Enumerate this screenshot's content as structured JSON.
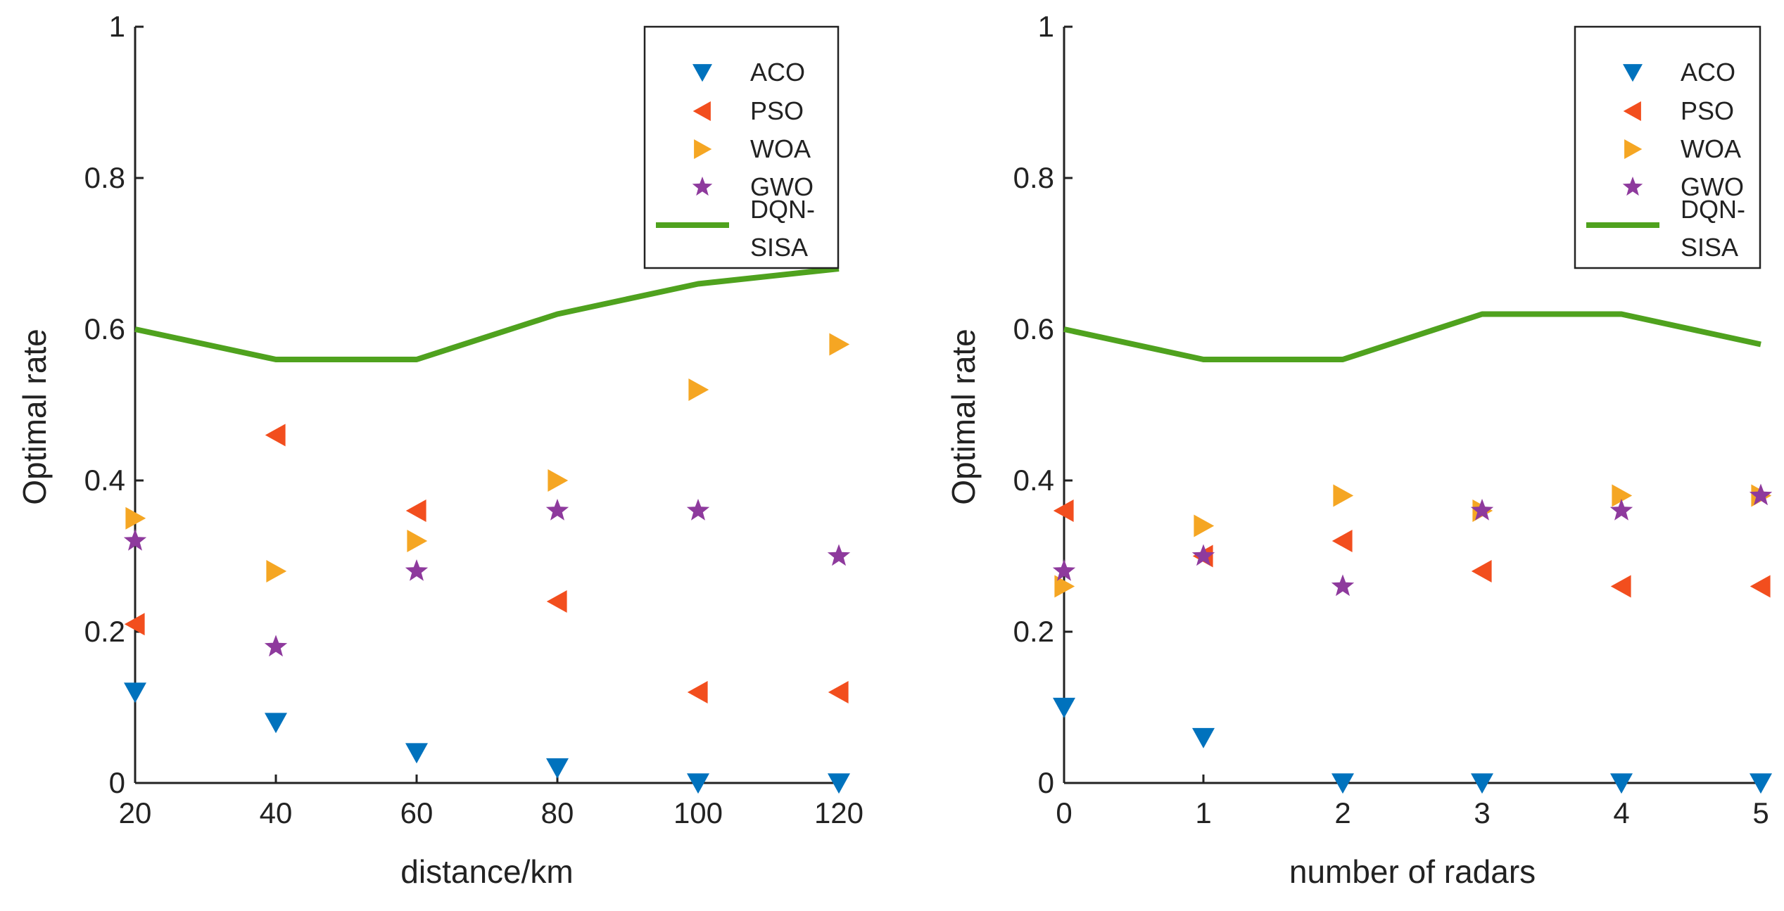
{
  "chart_data": [
    {
      "type": "scatter",
      "title": "",
      "xlabel": "distance/km",
      "ylabel": "Optimal rate",
      "xlim": [
        20,
        120
      ],
      "ylim": [
        0,
        1
      ],
      "x": [
        20,
        40,
        60,
        80,
        100,
        120
      ],
      "x_ticks": [
        "20",
        "40",
        "60",
        "80",
        "100",
        "120"
      ],
      "y_ticks": [
        "0",
        "0.2",
        "0.4",
        "0.6",
        "0.8",
        "1"
      ],
      "legend_position": "top-right",
      "series": [
        {
          "name": "ACO",
          "marker": "triangle-down",
          "color": "#0072BD",
          "values": [
            0.12,
            0.08,
            0.04,
            0.02,
            0.0,
            0.0
          ]
        },
        {
          "name": "PSO",
          "marker": "triangle-left",
          "color": "#F24E1E",
          "values": [
            0.21,
            0.46,
            0.36,
            0.24,
            0.12,
            0.12
          ]
        },
        {
          "name": "WOA",
          "marker": "triangle-right",
          "color": "#F5A623",
          "values": [
            0.35,
            0.28,
            0.32,
            0.4,
            0.52,
            0.58
          ]
        },
        {
          "name": "GWO",
          "marker": "star",
          "color": "#8E3A9D",
          "values": [
            0.32,
            0.18,
            0.28,
            0.36,
            0.36,
            0.3
          ]
        },
        {
          "name": "DQN-SISA",
          "marker": "line",
          "color": "#4FA21E",
          "values": [
            0.6,
            0.56,
            0.56,
            0.62,
            0.66,
            0.68
          ]
        }
      ]
    },
    {
      "type": "scatter",
      "title": "",
      "xlabel": "number of radars",
      "ylabel": "Optimal rate",
      "xlim": [
        0,
        5
      ],
      "ylim": [
        0,
        1
      ],
      "x": [
        0,
        1,
        2,
        3,
        4,
        5
      ],
      "x_ticks": [
        "0",
        "1",
        "2",
        "3",
        "4",
        "5"
      ],
      "y_ticks": [
        "0",
        "0.2",
        "0.4",
        "0.6",
        "0.8",
        "1"
      ],
      "legend_position": "top-right",
      "series": [
        {
          "name": "ACO",
          "marker": "triangle-down",
          "color": "#0072BD",
          "values": [
            0.1,
            0.06,
            0.0,
            0.0,
            0.0,
            0.0
          ]
        },
        {
          "name": "PSO",
          "marker": "triangle-left",
          "color": "#F24E1E",
          "values": [
            0.36,
            0.3,
            0.32,
            0.28,
            0.26,
            0.26
          ]
        },
        {
          "name": "WOA",
          "marker": "triangle-right",
          "color": "#F5A623",
          "values": [
            0.26,
            0.34,
            0.38,
            0.36,
            0.38,
            0.38
          ]
        },
        {
          "name": "GWO",
          "marker": "star",
          "color": "#8E3A9D",
          "values": [
            0.28,
            0.3,
            0.26,
            0.36,
            0.36,
            0.38
          ]
        },
        {
          "name": "DQN-SISA",
          "marker": "line",
          "color": "#4FA21E",
          "values": [
            0.6,
            0.56,
            0.56,
            0.62,
            0.62,
            0.58
          ]
        }
      ]
    }
  ]
}
